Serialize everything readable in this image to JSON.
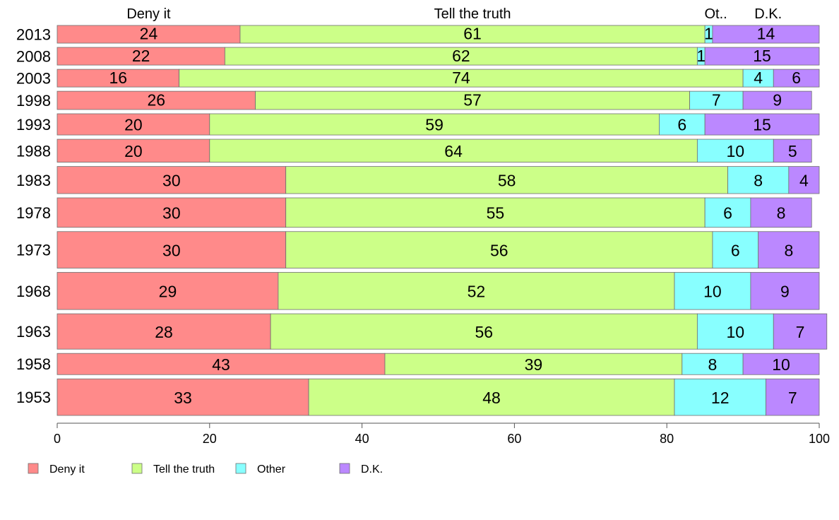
{
  "chart_data": {
    "type": "bar",
    "orientation": "horizontal-stacked",
    "categories": [
      "2013",
      "2008",
      "2003",
      "1998",
      "1993",
      "1988",
      "1983",
      "1978",
      "1973",
      "1968",
      "1963",
      "1958",
      "1953"
    ],
    "series": [
      {
        "name": "Deny it",
        "short_name": "Deny it",
        "color": "#ff8a8a",
        "values": [
          24,
          22,
          16,
          26,
          20,
          20,
          30,
          30,
          30,
          29,
          28,
          43,
          33
        ]
      },
      {
        "name": "Tell the truth",
        "short_name": "Tell the truth",
        "color": "#ccff88",
        "values": [
          61,
          62,
          74,
          57,
          59,
          64,
          58,
          55,
          56,
          52,
          56,
          39,
          48
        ]
      },
      {
        "name": "Other",
        "short_name": "Ot..",
        "color": "#88ffff",
        "values": [
          1,
          1,
          4,
          7,
          6,
          10,
          8,
          6,
          6,
          10,
          10,
          8,
          12
        ]
      },
      {
        "name": "D.K.",
        "short_name": "D.K.",
        "color": "#bb88ff",
        "values": [
          14,
          15,
          6,
          9,
          15,
          5,
          4,
          8,
          8,
          9,
          7,
          10,
          7
        ]
      }
    ],
    "bar_weights": [
      3,
      3,
      3,
      3.5,
      4,
      4.5,
      5,
      5.5,
      7,
      7,
      6.5,
      4,
      6913.5
    ],
    "xlim": [
      0,
      100
    ],
    "xticks": [
      0,
      20,
      40,
      60,
      80,
      100
    ],
    "grid": false,
    "legend_position": "bottom-left"
  }
}
